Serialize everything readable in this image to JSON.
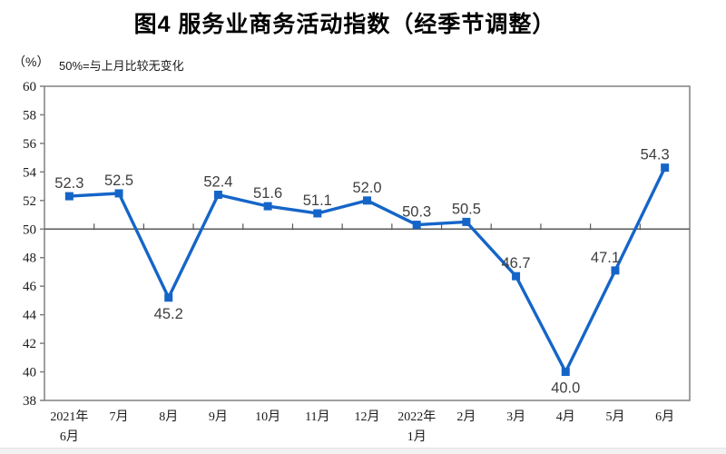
{
  "title": "图4 服务业商务活动指数（经季节调整）",
  "unit_label": "（%）",
  "note": "50%=与上月比较无变化",
  "colors": {
    "line": "#1565c8",
    "marker": "#1565c8",
    "plot_border": "#808080",
    "ref_line": "#595959",
    "data_label": "#3f3f3f",
    "axis_text": "#1a1a1a"
  },
  "chart_data": {
    "type": "line",
    "title": "图4 服务业商务活动指数（经季节调整）",
    "ylabel": "（%）",
    "annotation": "50%=与上月比较无变化",
    "categories": [
      [
        "2021年",
        "6月"
      ],
      [
        "7月"
      ],
      [
        "8月"
      ],
      [
        "9月"
      ],
      [
        "10月"
      ],
      [
        "11月"
      ],
      [
        "12月"
      ],
      [
        "2022年",
        "1月"
      ],
      [
        "2月"
      ],
      [
        "3月"
      ],
      [
        "4月"
      ],
      [
        "5月"
      ],
      [
        "6月"
      ]
    ],
    "values": [
      52.3,
      52.5,
      45.2,
      52.4,
      51.6,
      51.1,
      52.0,
      50.3,
      50.5,
      46.7,
      40.0,
      47.1,
      54.3
    ],
    "ylim": [
      38,
      60
    ],
    "ytick_step": 2,
    "ref_value": 50,
    "grid": "off",
    "legend": "none",
    "label_placement": [
      "above",
      "above",
      "below",
      "above",
      "above",
      "above",
      "above",
      "above",
      "above",
      "above",
      "below",
      "above-left",
      "above-left"
    ]
  }
}
